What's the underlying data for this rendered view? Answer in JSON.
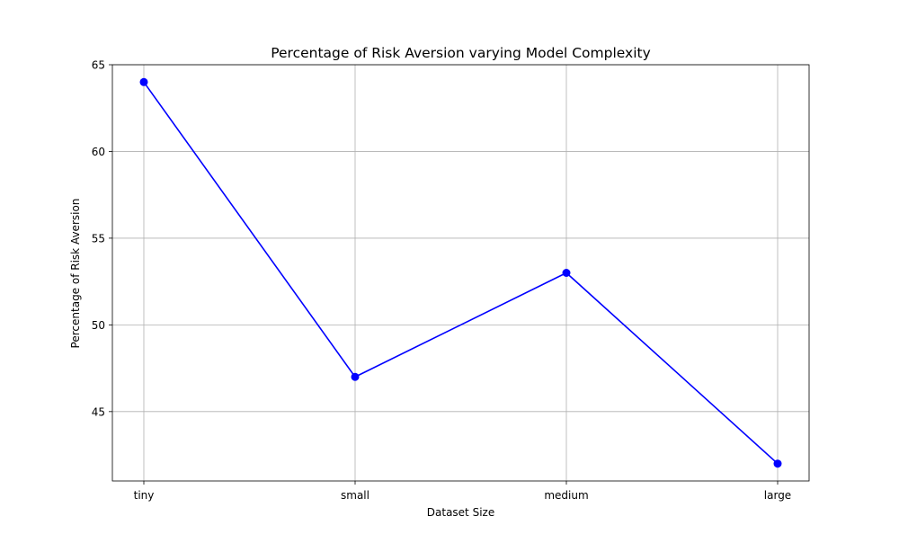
{
  "chart_data": {
    "type": "line",
    "title": "Percentage of Risk Aversion varying Model Complexity",
    "xlabel": "Dataset Size",
    "ylabel": "Percentage of Risk Aversion",
    "categories": [
      "tiny",
      "small",
      "medium",
      "large"
    ],
    "series": [
      {
        "values": [
          64,
          47,
          53,
          42
        ],
        "color": "#0000ff",
        "marker": "circle"
      }
    ],
    "ylim": [
      41,
      65
    ],
    "yticks": [
      45,
      50,
      55,
      60,
      65
    ],
    "grid": true
  }
}
